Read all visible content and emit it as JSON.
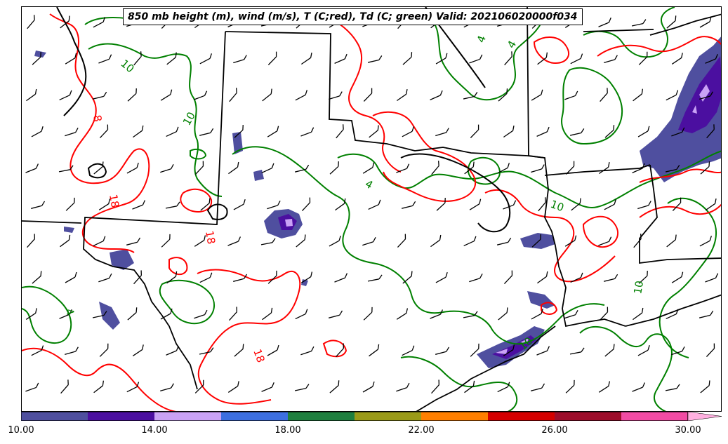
{
  "title": "850 mb height (m), wind (m/s), T (C;red), Td (C; green) Valid: 202106020000f034",
  "colorbar": {
    "colors": [
      "#4f4f9f",
      "#4b0fa0",
      "#c9a2f5",
      "#3d6fe0",
      "#1f7f3f",
      "#9a9a18",
      "#ff7f00",
      "#d40000",
      "#9d0d2b",
      "#f24ba4",
      "#ffb0e0"
    ],
    "ticks": [
      "10.00",
      "14.00",
      "18.00",
      "22.00",
      "26.00",
      "30.00"
    ]
  },
  "contour_labels": {
    "temperature": [
      "18",
      "18",
      "18",
      "8"
    ],
    "dewpoint": [
      "10",
      "10",
      "10",
      "10",
      "10",
      "4",
      "4",
      "4",
      "4"
    ]
  }
}
